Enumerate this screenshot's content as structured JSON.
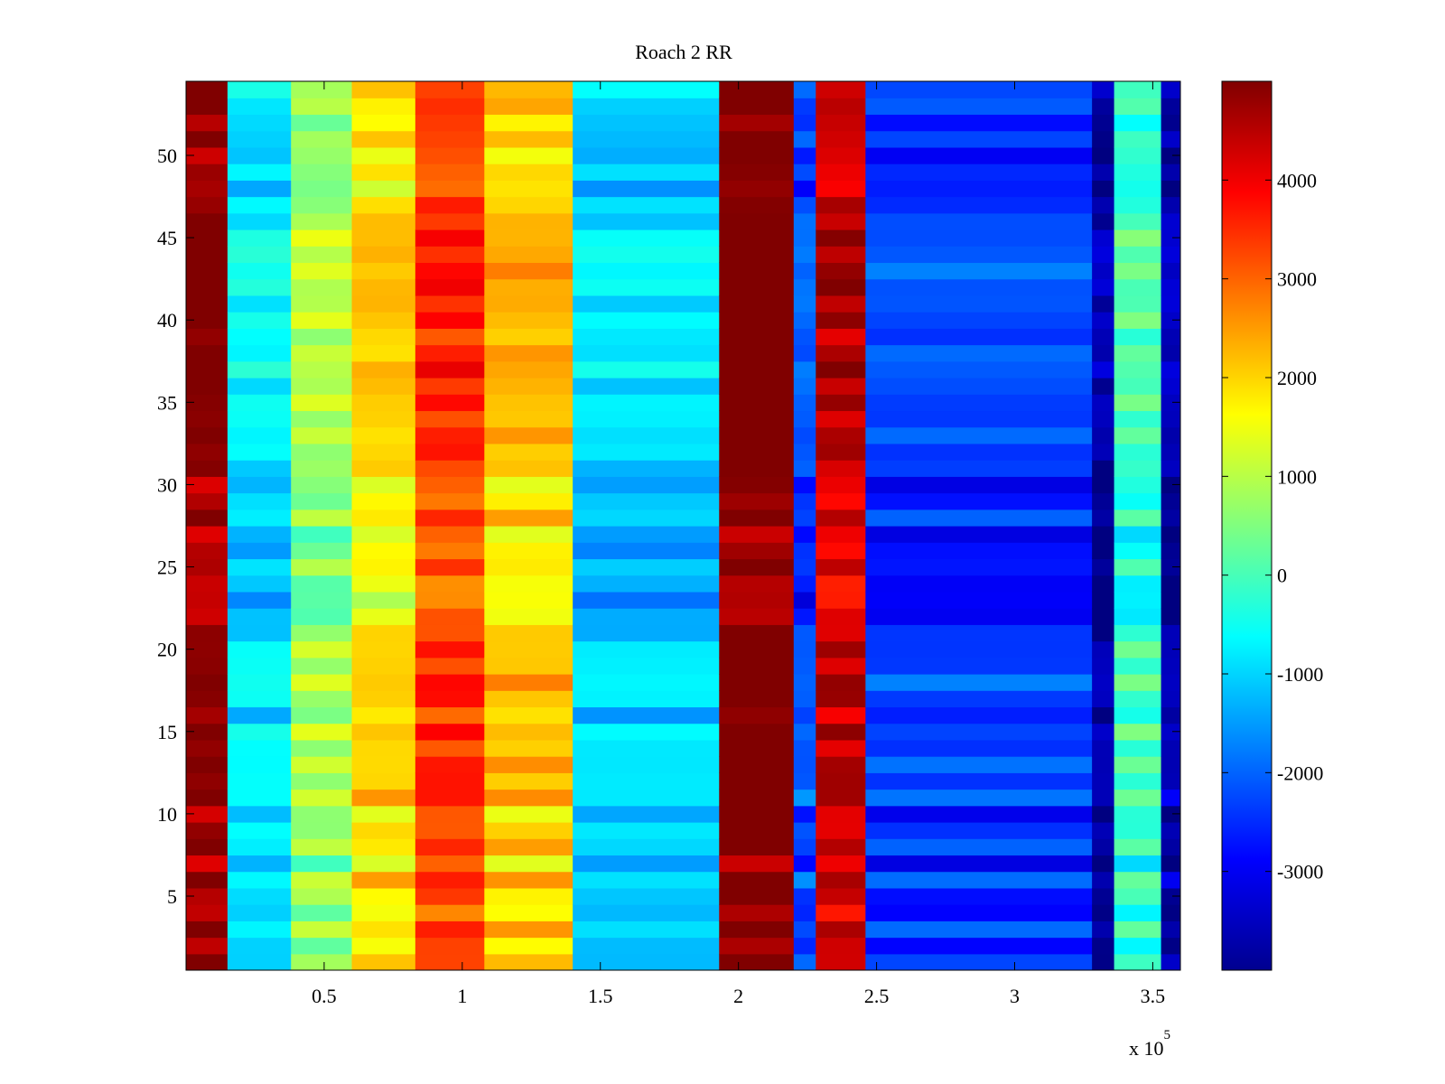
{
  "chart_data": {
    "type": "heatmap",
    "title": "Roach 2 RR",
    "xlabel": "",
    "ylabel": "",
    "x_multiplier_label": "x 10",
    "x_multiplier_exponent": "5",
    "x_range": [
      0,
      360000
    ],
    "y_range": [
      0.5,
      54.5
    ],
    "x_ticks": [
      {
        "value": 50000,
        "label": "0.5"
      },
      {
        "value": 100000,
        "label": "1"
      },
      {
        "value": 150000,
        "label": "1.5"
      },
      {
        "value": 200000,
        "label": "2"
      },
      {
        "value": 250000,
        "label": "2.5"
      },
      {
        "value": 300000,
        "label": "3"
      },
      {
        "value": 350000,
        "label": "3.5"
      }
    ],
    "y_ticks": [
      {
        "value": 5,
        "label": "5"
      },
      {
        "value": 10,
        "label": "10"
      },
      {
        "value": 15,
        "label": "15"
      },
      {
        "value": 20,
        "label": "20"
      },
      {
        "value": 25,
        "label": "25"
      },
      {
        "value": 30,
        "label": "30"
      },
      {
        "value": 35,
        "label": "35"
      },
      {
        "value": 40,
        "label": "40"
      },
      {
        "value": 45,
        "label": "45"
      },
      {
        "value": 50,
        "label": "50"
      }
    ],
    "colorbar": {
      "colormap": "jet",
      "range": [
        -4000,
        5000
      ],
      "ticks": [
        {
          "value": 4000,
          "label": "4000"
        },
        {
          "value": 3000,
          "label": "3000"
        },
        {
          "value": 2000,
          "label": "2000"
        },
        {
          "value": 1000,
          "label": "1000"
        },
        {
          "value": 0,
          "label": "0"
        },
        {
          "value": -1000,
          "label": "-1000"
        },
        {
          "value": -2000,
          "label": "-2000"
        },
        {
          "value": -3000,
          "label": "-3000"
        }
      ]
    },
    "rows": 54,
    "column_bands": [
      {
        "x_start": 0,
        "x_end": 15000,
        "value": 4700
      },
      {
        "x_start": 15000,
        "x_end": 38000,
        "value": -1000
      },
      {
        "x_start": 38000,
        "x_end": 60000,
        "value": 600
      },
      {
        "x_start": 60000,
        "x_end": 83000,
        "value": 1700
      },
      {
        "x_start": 83000,
        "x_end": 108000,
        "value": 3200
      },
      {
        "x_start": 108000,
        "x_end": 140000,
        "value": 1900
      },
      {
        "x_start": 140000,
        "x_end": 193000,
        "value": -1200
      },
      {
        "x_start": 193000,
        "x_end": 220000,
        "value": 5000
      },
      {
        "x_start": 220000,
        "x_end": 228000,
        "value": -2400
      },
      {
        "x_start": 228000,
        "x_end": 246000,
        "value": 4200
      },
      {
        "x_start": 246000,
        "x_end": 328000,
        "value": -2600
      },
      {
        "x_start": 328000,
        "x_end": 336000,
        "value": -3900
      },
      {
        "x_start": 336000,
        "x_end": 353000,
        "value": -300
      },
      {
        "x_start": 353000,
        "x_end": 360000,
        "value": -3800
      }
    ],
    "row_pattern": [
      0.3,
      -0.2,
      0.6,
      -0.4,
      0.1,
      0.8,
      -0.6,
      0.5,
      0.2,
      -0.3,
      0.9,
      0.4,
      0.7,
      0.2,
      0.8,
      -0.2,
      0.5,
      0.9,
      0.3,
      0.6,
      0.1,
      -0.4,
      -0.8,
      -0.5,
      0.2,
      -0.4,
      -0.6,
      0.5,
      -0.2,
      -0.4,
      0.2,
      0.4,
      0.6,
      0.3,
      0.7,
      0.4,
      0.9,
      0.6,
      0.2,
      0.8,
      0.5,
      0.8,
      0.9,
      0.7,
      0.9,
      0.4,
      0.3,
      -0.4,
      0.1,
      -0.2,
      0.3,
      -0.1,
      0.4,
      0.5
    ]
  }
}
